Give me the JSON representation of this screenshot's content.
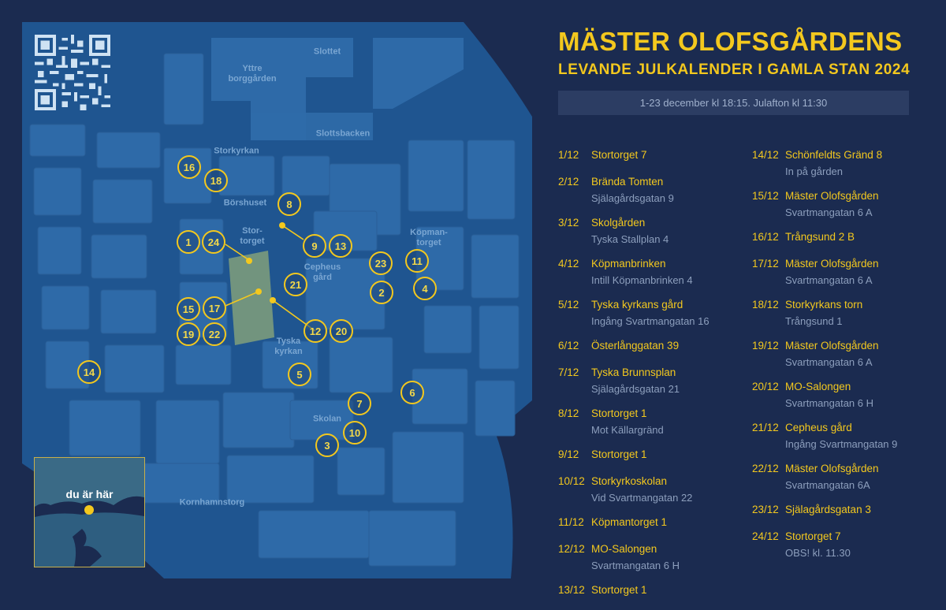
{
  "title_line1": "MÄSTER OLOFSGÅRDENS",
  "title_line2": "LEVANDE JULKALENDER I GAMLA STAN 2024",
  "date_info": "1-23 december kl 18:15. Julafton kl 11:30",
  "map": {
    "labels": {
      "slottet": "Slottet",
      "yttre_borggarden": "Yttre\nborggården",
      "slottsbacken": "Slottsbacken",
      "storkyrkan": "Storkyrkan",
      "borshuset": "Börshuset",
      "stortorget": "Stor-\ntorget",
      "kopmantorget": "Köpman-\ntorget",
      "cepheus_gard": "Cepheus\ngård",
      "tyska_kyrkan": "Tyska\nkyrkan",
      "skolan": "Skolan",
      "kornhamnstorg": "Kornhamnstorg"
    },
    "markers": [
      "1",
      "2",
      "3",
      "4",
      "5",
      "6",
      "7",
      "8",
      "9",
      "10",
      "11",
      "12",
      "13",
      "14",
      "15",
      "16",
      "17",
      "18",
      "19",
      "20",
      "21",
      "22",
      "23",
      "24"
    ],
    "inset_label": "du är här",
    "colors": {
      "marker": "#f3c81e",
      "water": "#1b2b50",
      "block": "#2e6aa8",
      "street": "#1f5590"
    }
  },
  "calendar_col1": [
    {
      "date": "1/12",
      "place": "Stortorget 7",
      "detail": ""
    },
    {
      "date": "2/12",
      "place": "Brända Tomten",
      "detail": "Själagårdsgatan 9"
    },
    {
      "date": "3/12",
      "place": "Skolgården",
      "detail": "Tyska Stallplan 4"
    },
    {
      "date": "4/12",
      "place": "Köpmanbrinken",
      "detail": "Intill Köpmanbrinken 4"
    },
    {
      "date": "5/12",
      "place": "Tyska kyrkans gård",
      "detail": "Ingång Svartmangatan 16"
    },
    {
      "date": "6/12",
      "place": "Österlånggatan 39",
      "detail": ""
    },
    {
      "date": "7/12",
      "place": "Tyska Brunnsplan",
      "detail": "Själagårdsgatan 21"
    },
    {
      "date": "8/12",
      "place": "Stortorget 1",
      "detail": "Mot Källargränd"
    },
    {
      "date": "9/12",
      "place": "Stortorget 1",
      "detail": ""
    },
    {
      "date": "10/12",
      "place": "Storkyrkoskolan",
      "detail": "Vid Svartmangatan 22"
    },
    {
      "date": "11/12",
      "place": "Köpmantorget 1",
      "detail": ""
    },
    {
      "date": "12/12",
      "place": "MO-Salongen",
      "detail": "Svartmangatan 6 H"
    },
    {
      "date": "13/12",
      "place": "Stortorget 1",
      "detail": ""
    }
  ],
  "calendar_col2": [
    {
      "date": "14/12",
      "place": "Schönfeldts Gränd 8",
      "detail": "In på gården"
    },
    {
      "date": "15/12",
      "place": "Mäster Olofsgården",
      "detail": "Svartmangatan 6 A"
    },
    {
      "date": "16/12",
      "place": "Trångsund 2 B",
      "detail": ""
    },
    {
      "date": "17/12",
      "place": "Mäster Olofsgården",
      "detail": "Svartmangatan 6 A"
    },
    {
      "date": "18/12",
      "place": "Storkyrkans torn",
      "detail": "Trångsund 1"
    },
    {
      "date": "19/12",
      "place": "Mäster Olofsgården",
      "detail": "Svartmangatan 6 A"
    },
    {
      "date": "20/12",
      "place": "MO-Salongen",
      "detail": "Svartmangatan 6 H"
    },
    {
      "date": "21/12",
      "place": "Cepheus gård",
      "detail": "Ingång Svartmangatan 9"
    },
    {
      "date": "22/12",
      "place": "Mäster Olofsgården",
      "detail": "Svartmangatan 6A"
    },
    {
      "date": "23/12",
      "place": "Själagårdsgatan 3",
      "detail": ""
    },
    {
      "date": "24/12",
      "place": "Stortorget 7",
      "detail": "OBS! kl. 11.30"
    }
  ]
}
